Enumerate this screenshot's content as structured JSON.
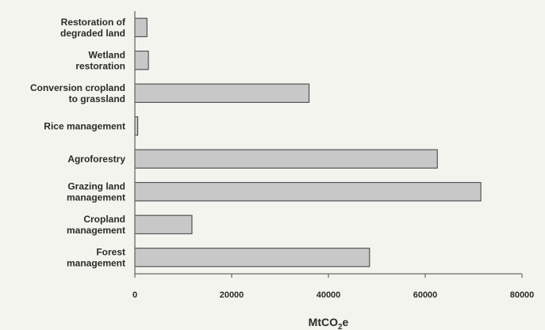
{
  "chart_data": {
    "type": "bar",
    "orientation": "horizontal",
    "categories": [
      [
        "Restoration of",
        "degraded land"
      ],
      [
        "Wetland",
        "restoration"
      ],
      [
        "Conversion cropland",
        "to grassland"
      ],
      [
        "Rice management"
      ],
      [
        "Agroforestry"
      ],
      [
        "Grazing land",
        "management"
      ],
      [
        "Cropland",
        "management"
      ],
      [
        "Forest",
        "management"
      ]
    ],
    "values": [
      2500,
      2800,
      36000,
      600,
      62500,
      71500,
      11800,
      48500
    ],
    "xlim": [
      0,
      80000
    ],
    "xticks": [
      0,
      20000,
      40000,
      60000,
      80000
    ],
    "xlabel": {
      "main": "MtCO",
      "sub": "2",
      "suffix": "e"
    },
    "title": "",
    "ylabel": "",
    "grid": false,
    "legend": "none",
    "bar_color": "#c8c8c8",
    "bar_edge_color": "#3a3a3a"
  }
}
